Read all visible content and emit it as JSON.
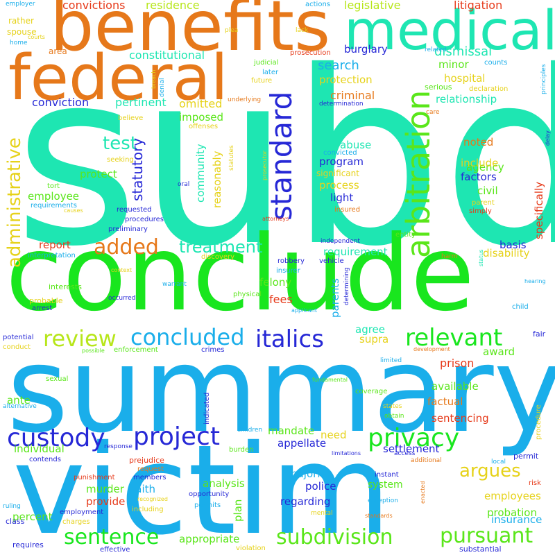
{
  "colors": {
    "background": "#ffffff",
    "teal": "#1ee6b2",
    "green": "#19e61e",
    "sky": "#1aaeea",
    "lime": "#b7e61a",
    "yellow": "#e6d21a",
    "orange": "#e6781a",
    "red": "#e63a1a",
    "blue": "#2628d6",
    "grass": "#5ae61a"
  },
  "words": [
    {
      "text": "subd",
      "color": "teal"
    },
    {
      "text": "conclude",
      "color": "green"
    },
    {
      "text": "summary",
      "color": "sky"
    },
    {
      "text": "victim",
      "color": "sky"
    },
    {
      "text": "benefits",
      "color": "orange"
    },
    {
      "text": "federal",
      "color": "orange"
    },
    {
      "text": "medical",
      "color": "teal"
    },
    {
      "text": "arbitration",
      "color": "grass"
    },
    {
      "text": "standard",
      "color": "blue"
    },
    {
      "text": "administrative",
      "color": "yellow"
    },
    {
      "text": "custody",
      "color": "blue"
    },
    {
      "text": "project",
      "color": "blue"
    },
    {
      "text": "privacy",
      "color": "green"
    },
    {
      "text": "italics",
      "color": "blue"
    },
    {
      "text": "relevant",
      "color": "green"
    },
    {
      "text": "review",
      "color": "lime"
    },
    {
      "text": "concluded",
      "color": "sky"
    },
    {
      "text": "sentence",
      "color": "green"
    },
    {
      "text": "subdivision",
      "color": "grass"
    },
    {
      "text": "pursuant",
      "color": "grass"
    },
    {
      "text": "added",
      "color": "orange"
    },
    {
      "text": "treatment",
      "color": "teal"
    },
    {
      "text": "test",
      "color": "teal"
    },
    {
      "text": "argues",
      "color": "yellow"
    },
    {
      "text": "convictions",
      "color": "red"
    },
    {
      "text": "residence",
      "color": "lime"
    },
    {
      "text": "legislative",
      "color": "lime"
    },
    {
      "text": "litigation",
      "color": "red"
    },
    {
      "text": "dismissal",
      "color": "teal"
    },
    {
      "text": "constitutional",
      "color": "teal"
    },
    {
      "text": "burglary",
      "color": "blue"
    },
    {
      "text": "search",
      "color": "sky"
    },
    {
      "text": "minor",
      "color": "grass"
    },
    {
      "text": "protection",
      "color": "yellow"
    },
    {
      "text": "hospital",
      "color": "yellow"
    },
    {
      "text": "criminal",
      "color": "orange"
    },
    {
      "text": "relationship",
      "color": "teal"
    },
    {
      "text": "conviction",
      "color": "blue"
    },
    {
      "text": "pertinent",
      "color": "teal"
    },
    {
      "text": "omitted",
      "color": "yellow"
    },
    {
      "text": "imposed",
      "color": "grass"
    },
    {
      "text": "statutory",
      "color": "blue"
    },
    {
      "text": "protect",
      "color": "grass"
    },
    {
      "text": "employee",
      "color": "grass"
    },
    {
      "text": "community",
      "color": "teal"
    },
    {
      "text": "reasonably",
      "color": "yellow"
    },
    {
      "text": "abuse",
      "color": "teal"
    },
    {
      "text": "program",
      "color": "blue"
    },
    {
      "text": "process",
      "color": "yellow"
    },
    {
      "text": "light",
      "color": "blue"
    },
    {
      "text": "noted",
      "color": "orange"
    },
    {
      "text": "agency",
      "color": "grass"
    },
    {
      "text": "include",
      "color": "yellow"
    },
    {
      "text": "factors",
      "color": "blue"
    },
    {
      "text": "civil",
      "color": "grass"
    },
    {
      "text": "specifically",
      "color": "red"
    },
    {
      "text": "requirement",
      "color": "teal"
    },
    {
      "text": "basis",
      "color": "blue"
    },
    {
      "text": "disability",
      "color": "yellow"
    },
    {
      "text": "report",
      "color": "red"
    },
    {
      "text": "felony",
      "color": "grass"
    },
    {
      "text": "fees",
      "color": "red"
    },
    {
      "text": "parents",
      "color": "sky"
    },
    {
      "text": "agree",
      "color": "teal"
    },
    {
      "text": "supra",
      "color": "yellow"
    },
    {
      "text": "award",
      "color": "grass"
    },
    {
      "text": "prison",
      "color": "red"
    },
    {
      "text": "available",
      "color": "grass"
    },
    {
      "text": "factual",
      "color": "orange"
    },
    {
      "text": "sentencing",
      "color": "red"
    },
    {
      "text": "mandate",
      "color": "grass"
    },
    {
      "text": "need",
      "color": "yellow"
    },
    {
      "text": "appellate",
      "color": "blue"
    },
    {
      "text": "settlement",
      "color": "blue"
    },
    {
      "text": "individual",
      "color": "grass"
    },
    {
      "text": "ante",
      "color": "grass"
    },
    {
      "text": "percent",
      "color": "grass"
    },
    {
      "text": "murder",
      "color": "grass"
    },
    {
      "text": "provide",
      "color": "red"
    },
    {
      "text": "faith",
      "color": "sky"
    },
    {
      "text": "analysis",
      "color": "grass"
    },
    {
      "text": "plan",
      "color": "grass"
    },
    {
      "text": "majority",
      "color": "sky"
    },
    {
      "text": "police",
      "color": "blue"
    },
    {
      "text": "regarding",
      "color": "blue"
    },
    {
      "text": "system",
      "color": "grass"
    },
    {
      "text": "employees",
      "color": "yellow"
    },
    {
      "text": "probation",
      "color": "grass"
    },
    {
      "text": "insurance",
      "color": "sky"
    },
    {
      "text": "appropriate",
      "color": "grass"
    },
    {
      "text": "rather",
      "color": "yellow"
    },
    {
      "text": "spouse",
      "color": "yellow"
    },
    {
      "text": "area",
      "color": "orange"
    },
    {
      "text": "actions",
      "color": "sky"
    },
    {
      "text": "employer",
      "color": "sky"
    },
    {
      "text": "courts",
      "color": "yellow"
    },
    {
      "text": "home",
      "color": "sky"
    },
    {
      "text": "plea",
      "color": "yellow"
    },
    {
      "text": "lack",
      "color": "yellow"
    },
    {
      "text": "prosecution",
      "color": "red"
    },
    {
      "text": "related",
      "color": "sky"
    },
    {
      "text": "judicial",
      "color": "grass"
    },
    {
      "text": "later",
      "color": "sky"
    },
    {
      "text": "future",
      "color": "yellow"
    },
    {
      "text": "underlying",
      "color": "orange"
    },
    {
      "text": "determination",
      "color": "blue"
    },
    {
      "text": "counts",
      "color": "sky"
    },
    {
      "text": "serious",
      "color": "grass"
    },
    {
      "text": "declaration",
      "color": "yellow"
    },
    {
      "text": "care",
      "color": "orange"
    },
    {
      "text": "principles",
      "color": "sky"
    },
    {
      "text": "delay",
      "color": "blue"
    },
    {
      "text": "believe",
      "color": "yellow"
    },
    {
      "text": "offenses",
      "color": "yellow"
    },
    {
      "text": "seeking",
      "color": "yellow"
    },
    {
      "text": "breach",
      "color": "yellow"
    },
    {
      "text": "denial",
      "color": "sky"
    },
    {
      "text": "oral",
      "color": "blue"
    },
    {
      "text": "prosecutor",
      "color": "yellow"
    },
    {
      "text": "statutes",
      "color": "yellow"
    },
    {
      "text": "convicted",
      "color": "sky"
    },
    {
      "text": "significant",
      "color": "yellow"
    },
    {
      "text": "tort",
      "color": "grass"
    },
    {
      "text": "requirements",
      "color": "sky"
    },
    {
      "text": "causes",
      "color": "yellow"
    },
    {
      "text": "requested",
      "color": "blue"
    },
    {
      "text": "procedures",
      "color": "blue"
    },
    {
      "text": "attorneys",
      "color": "red"
    },
    {
      "text": "insured",
      "color": "orange"
    },
    {
      "text": "parent",
      "color": "yellow"
    },
    {
      "text": "simply",
      "color": "red"
    },
    {
      "text": "preliminary",
      "color": "blue"
    },
    {
      "text": "independent",
      "color": "blue"
    },
    {
      "text": "entity",
      "color": "grass"
    },
    {
      "text": "interpretation",
      "color": "sky"
    },
    {
      "text": "discovery",
      "color": "yellow"
    },
    {
      "text": "harm",
      "color": "orange"
    },
    {
      "text": "robbery",
      "color": "blue"
    },
    {
      "text": "insurer",
      "color": "sky"
    },
    {
      "text": "vehicle",
      "color": "blue"
    },
    {
      "text": "interests",
      "color": "grass"
    },
    {
      "text": "context",
      "color": "yellow"
    },
    {
      "text": "warrant",
      "color": "sky"
    },
    {
      "text": "physical",
      "color": "grass"
    },
    {
      "text": "determining",
      "color": "blue"
    },
    {
      "text": "status",
      "color": "teal"
    },
    {
      "text": "hearing",
      "color": "sky"
    },
    {
      "text": "probable",
      "color": "yellow"
    },
    {
      "text": "occurred",
      "color": "blue"
    },
    {
      "text": "arrest",
      "color": "blue"
    },
    {
      "text": "applicant",
      "color": "sky"
    },
    {
      "text": "child",
      "color": "sky"
    },
    {
      "text": "potential",
      "color": "blue"
    },
    {
      "text": "conduct",
      "color": "yellow"
    },
    {
      "text": "possible",
      "color": "grass"
    },
    {
      "text": "enforcement",
      "color": "grass"
    },
    {
      "text": "crimes",
      "color": "blue"
    },
    {
      "text": "development",
      "color": "orange"
    },
    {
      "text": "fair",
      "color": "blue"
    },
    {
      "text": "limited",
      "color": "sky"
    },
    {
      "text": "sexual",
      "color": "grass"
    },
    {
      "text": "fundamental",
      "color": "grass"
    },
    {
      "text": "coverage",
      "color": "grass"
    },
    {
      "text": "alternative",
      "color": "sky"
    },
    {
      "text": "indicated",
      "color": "blue"
    },
    {
      "text": "states",
      "color": "yellow"
    },
    {
      "text": "obtain",
      "color": "grass"
    },
    {
      "text": "procedure",
      "color": "yellow"
    },
    {
      "text": "children",
      "color": "sky"
    },
    {
      "text": "response",
      "color": "blue"
    },
    {
      "text": "contends",
      "color": "blue"
    },
    {
      "text": "burden",
      "color": "grass"
    },
    {
      "text": "limitations",
      "color": "blue"
    },
    {
      "text": "access",
      "color": "blue"
    },
    {
      "text": "additional",
      "color": "orange"
    },
    {
      "text": "permit",
      "color": "blue"
    },
    {
      "text": "local",
      "color": "sky"
    },
    {
      "text": "prejudice",
      "color": "red"
    },
    {
      "text": "request",
      "color": "orange"
    },
    {
      "text": "punishment",
      "color": "red"
    },
    {
      "text": "members",
      "color": "blue"
    },
    {
      "text": "instant",
      "color": "blue"
    },
    {
      "text": "risk",
      "color": "red"
    },
    {
      "text": "opportunity",
      "color": "blue"
    },
    {
      "text": "recognized",
      "color": "yellow"
    },
    {
      "text": "exception",
      "color": "sky"
    },
    {
      "text": "enacted",
      "color": "orange"
    },
    {
      "text": "ruling",
      "color": "sky"
    },
    {
      "text": "employment",
      "color": "blue"
    },
    {
      "text": "including",
      "color": "yellow"
    },
    {
      "text": "permits",
      "color": "sky"
    },
    {
      "text": "mental",
      "color": "yellow"
    },
    {
      "text": "standards",
      "color": "orange"
    },
    {
      "text": "class",
      "color": "blue"
    },
    {
      "text": "charges",
      "color": "yellow"
    },
    {
      "text": "requires",
      "color": "blue"
    },
    {
      "text": "effective",
      "color": "blue"
    },
    {
      "text": "violation",
      "color": "yellow"
    },
    {
      "text": "substantial",
      "color": "blue"
    }
  ]
}
